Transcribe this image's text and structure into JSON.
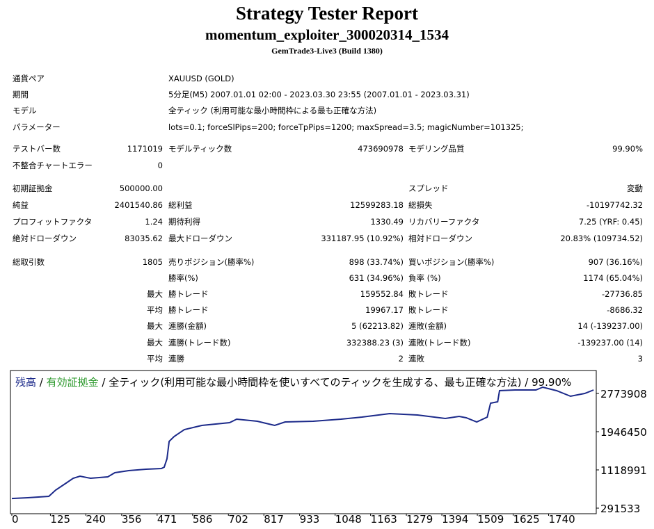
{
  "header": {
    "title": "Strategy Tester Report",
    "subtitle": "momentum_exploiter_300020314_1534",
    "server": "GemTrade3-Live3 (Build 1380)"
  },
  "info": [
    [
      "通貨ペア",
      "XAUUSD (GOLD)"
    ],
    [
      "期間",
      "5分足(M5) 2007.01.01 02:00 - 2023.03.30 23:55 (2007.01.01 - 2023.03.31)"
    ],
    [
      "モデル",
      "全ティック (利用可能な最小時間枠による最も正確な方法)"
    ],
    [
      "パラメーター",
      "lots=0.1; forceSlPips=200; forceTpPips=1200; maxSpread=3.5; magicNumber=101325;"
    ]
  ],
  "stats": [
    [
      "テストバー数",
      "1171019",
      "モデルティック数",
      "473690978",
      "モデリング品質",
      "99.90%"
    ],
    [
      "不整合チャートエラー",
      "0",
      null,
      null,
      null,
      null
    ],
    [
      "初期証拠金",
      "500000.00",
      null,
      null,
      "スプレッド",
      "変動"
    ],
    [
      "純益",
      "2401540.86",
      "総利益",
      "12599283.18",
      "総損失",
      "-10197742.32"
    ],
    [
      "プロフィットファクタ",
      "1.24",
      "期待利得",
      "1330.49",
      "リカバリーファクタ",
      "7.25 (YRF: 0.45)"
    ],
    [
      "絶対ドローダウン",
      "83035.62",
      "最大ドローダウン",
      "331187.95 (10.92%)",
      "相対ドローダウン",
      "20.83% (109734.52)"
    ],
    [
      "総取引数",
      "1805",
      "売りポジション(勝率%)",
      "898 (33.74%)",
      "買いポジション(勝率%)",
      "907 (36.16%)"
    ],
    [
      null,
      null,
      "勝率(%)",
      "631 (34.96%)",
      "負率 (%)",
      "1174 (65.04%)"
    ],
    [
      null,
      "最大",
      "勝トレード",
      "159552.84",
      "敗トレード",
      "-27736.85"
    ],
    [
      null,
      "平均",
      "勝トレード",
      "19967.17",
      "敗トレード",
      "-8686.32"
    ],
    [
      null,
      "最大",
      "連勝(金額)",
      "5 (62213.82)",
      "連敗(金額)",
      "14 (-139237.00)"
    ],
    [
      null,
      "最大",
      "連勝(トレード数)",
      "332388.23 (3)",
      "連敗(トレード数)",
      "-139237.00 (14)"
    ],
    [
      null,
      "平均",
      "連勝",
      "2",
      "連敗",
      "3"
    ]
  ],
  "chart_data": {
    "type": "line",
    "series": [
      {
        "name": "残高",
        "color": "#1c2a8a",
        "x": [
          0,
          52,
          120,
          142,
          176,
          199,
          221,
          255,
          311,
          334,
          379,
          435,
          485,
          494,
          503,
          510,
          526,
          559,
          616,
          706,
          729,
          796,
          852,
          886,
          977,
          1067,
          1135,
          1225,
          1315,
          1405,
          1450,
          1473,
          1507,
          1541,
          1552,
          1575,
          1581,
          1631,
          1699,
          1721,
          1766,
          1811,
          1857,
          1886
        ],
        "values": [
          500000,
          517000,
          547000,
          683000,
          833000,
          938000,
          984000,
          938000,
          968000,
          1059000,
          1104000,
          1134000,
          1149000,
          1179000,
          1360000,
          1736000,
          1841000,
          1992000,
          2082000,
          2142000,
          2217000,
          2172000,
          2082000,
          2157000,
          2172000,
          2217000,
          2262000,
          2337000,
          2307000,
          2232000,
          2277000,
          2247000,
          2157000,
          2262000,
          2563000,
          2593000,
          2834000,
          2849000,
          2849000,
          2909000,
          2834000,
          2713000,
          2774000,
          2849000
        ]
      }
    ],
    "equity_legend": {
      "name": "有効証拠金",
      "color": "#2e9a2e"
    },
    "separator": " / ",
    "caption": "全ティック(利用可能な最小時間枠を使いすべてのティックを生成する、最も正確な方法)",
    "quality": "99.90%",
    "xlim": [
      0,
      1890
    ],
    "ylim": [
      186000,
      3240000
    ],
    "xticks": [
      0,
      125,
      240,
      356,
      471,
      586,
      702,
      817,
      933,
      1048,
      1163,
      1279,
      1394,
      1509,
      1625,
      1740
    ],
    "yticks": [
      291533,
      1118991,
      1946450,
      2773908
    ]
  }
}
